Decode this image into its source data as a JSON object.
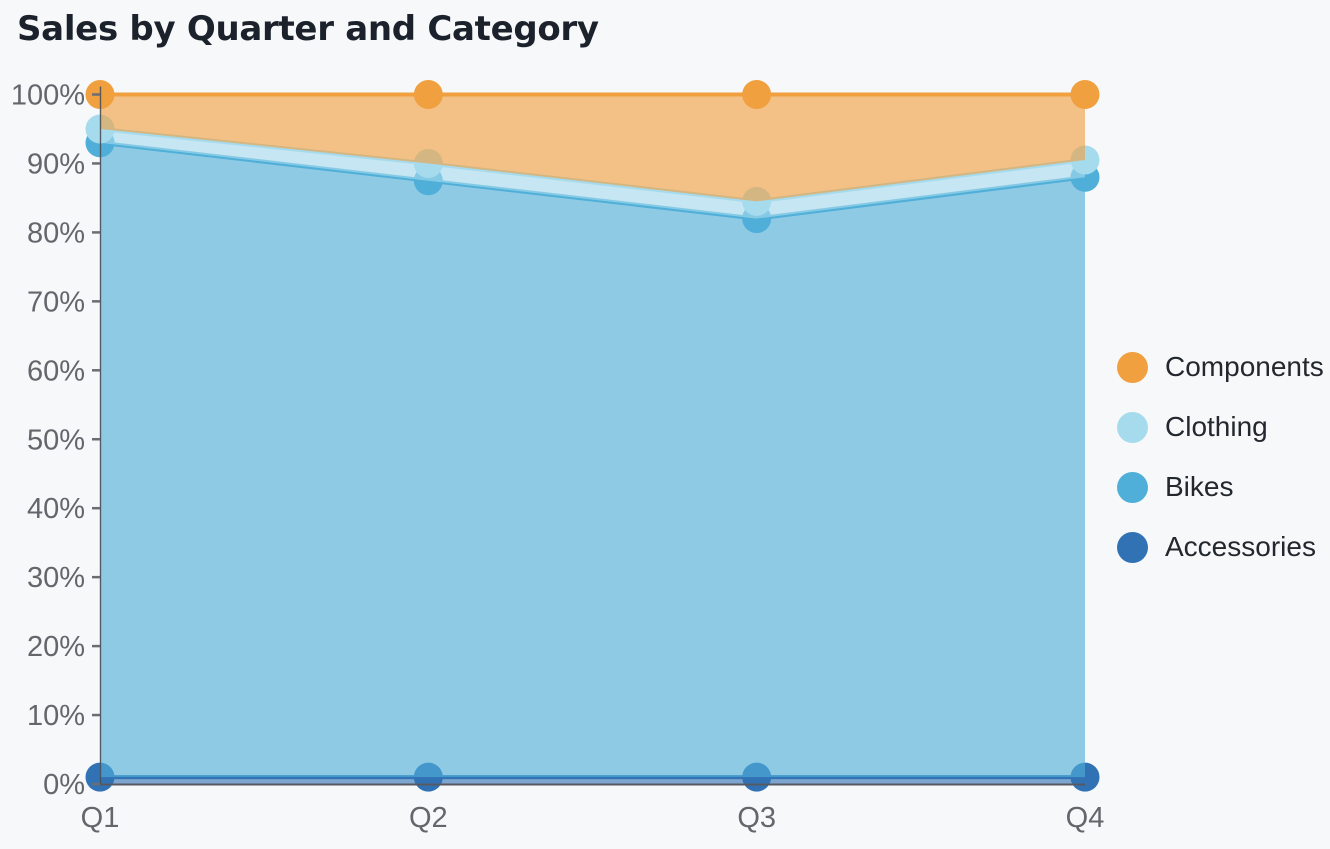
{
  "chart_data": {
    "type": "area",
    "stacking": "percent",
    "title": "Sales by Quarter and Category",
    "categories": [
      "Q1",
      "Q2",
      "Q3",
      "Q4"
    ],
    "series": [
      {
        "name": "Accessories",
        "color": "#3072b4",
        "values_pct": [
          1,
          1,
          1,
          1
        ],
        "cumulative_pct": [
          1,
          1,
          1,
          1
        ]
      },
      {
        "name": "Bikes",
        "color": "#4fafd8",
        "values_pct": [
          92,
          86.5,
          81,
          87
        ],
        "cumulative_pct": [
          93,
          87.5,
          82,
          88
        ]
      },
      {
        "name": "Clothing",
        "color": "#a6dbee",
        "values_pct": [
          2,
          2.5,
          2.5,
          2.5
        ],
        "cumulative_pct": [
          95,
          90,
          84.5,
          90.5
        ]
      },
      {
        "name": "Components",
        "color": "#f0a03f",
        "values_pct": [
          5,
          10,
          15.5,
          9.5
        ],
        "cumulative_pct": [
          100,
          100,
          100,
          100
        ]
      }
    ],
    "y_axis": {
      "min": 0,
      "max": 100,
      "tick_labels": [
        "0%",
        "10%",
        "20%",
        "30%",
        "40%",
        "50%",
        "60%",
        "70%",
        "80%",
        "90%",
        "100%"
      ]
    },
    "x_axis": {
      "labels": [
        "Q1",
        "Q2",
        "Q3",
        "Q4"
      ]
    },
    "legend": {
      "position": "right",
      "order": [
        "Components",
        "Clothing",
        "Bikes",
        "Accessories"
      ]
    },
    "grid": false,
    "background_color": "#f7f8fa"
  }
}
